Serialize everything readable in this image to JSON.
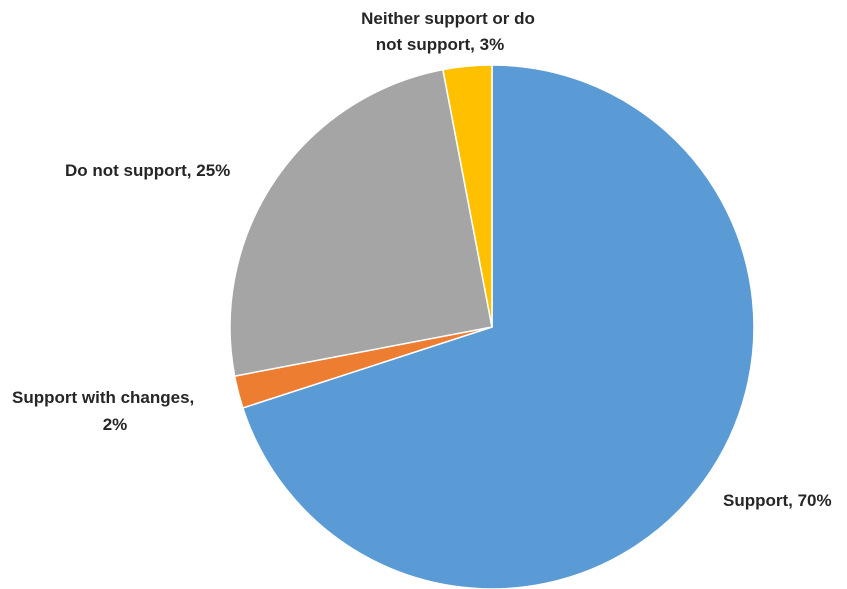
{
  "chart_data": {
    "type": "pie",
    "title": "",
    "start_angle_deg": 0,
    "direction": "clockwise",
    "legend": "none",
    "slices": [
      {
        "name": "Support",
        "value": 70,
        "label": "Support, 70%",
        "color": "#5B9BD5",
        "key": "support"
      },
      {
        "name": "Support with changes",
        "value": 2,
        "label_lines": [
          "Support with changes,",
          "2%"
        ],
        "color": "#ED7D31",
        "key": "support-with-changes"
      },
      {
        "name": "Do not support",
        "value": 25,
        "label": "Do not support, 25%",
        "color": "#A5A5A5",
        "key": "do-not-support"
      },
      {
        "name": "Neither support or do not support",
        "value": 3,
        "label_lines": [
          "Neither support or do",
          "not support,  3%"
        ],
        "color": "#FFC000",
        "key": "neither"
      }
    ]
  },
  "labels": {
    "support": "Support, 70%",
    "support_with_changes_line1": "Support with changes,",
    "support_with_changes_line2": "2%",
    "do_not_support": "Do not support, 25%",
    "neither_line1": "Neither support or do",
    "neither_line2": "not support,  3%"
  }
}
